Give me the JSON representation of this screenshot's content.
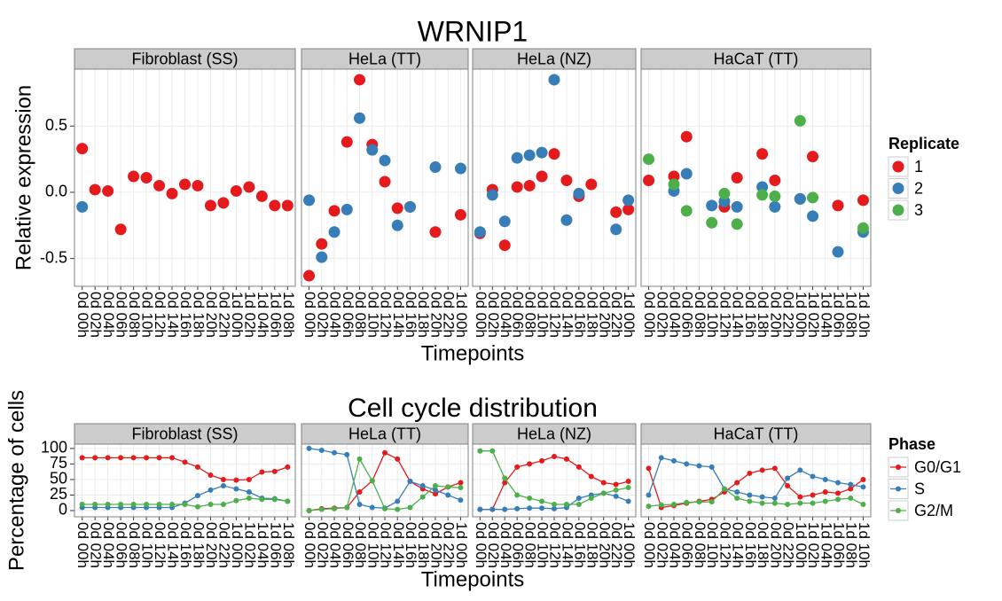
{
  "chart_data": [
    {
      "type": "scatter",
      "title": "WRNIP1",
      "x_label": "Timepoints",
      "y_label": "Relative expression",
      "legend_title": "Replicate",
      "ylim": [
        -0.71,
        0.93
      ],
      "yticks": [
        -0.5,
        {
          "value": 0,
          "label": "0.0"
        },
        0.5
      ],
      "series": [
        {
          "name": "1",
          "color": "#e41a1c"
        },
        {
          "name": "2",
          "color": "#377eb8"
        },
        {
          "name": "3",
          "color": "#4daf4a"
        }
      ],
      "facets": [
        {
          "title": "Fibroblast (SS)",
          "categories": [
            "0d 00h",
            "0d 02h",
            "0d 04h",
            "0d 06h",
            "0d 08h",
            "0d 10h",
            "0d 12h",
            "0d 14h",
            "0d 16h",
            "0d 18h",
            "0d 20h",
            "0d 22h",
            "1d 00h",
            "1d 02h",
            "1d 04h",
            "1d 06h",
            "1d 08h"
          ],
          "values": [
            [
              0.33,
              0.02,
              0.01,
              -0.28,
              0.12,
              0.11,
              0.05,
              -0.01,
              0.06,
              0.05,
              -0.1,
              -0.08,
              0.01,
              0.04,
              -0.03,
              -0.1,
              -0.1
            ],
            [
              -0.11,
              null,
              null,
              null,
              null,
              null,
              null,
              null,
              null,
              null,
              null,
              null,
              null,
              null,
              null,
              null,
              null
            ],
            [
              null,
              null,
              null,
              null,
              null,
              null,
              null,
              null,
              null,
              null,
              null,
              null,
              null,
              null,
              null,
              null,
              null
            ]
          ]
        },
        {
          "title": "HeLa (TT)",
          "categories": [
            "0d 00h",
            "0d 02h",
            "0d 04h",
            "0d 06h",
            "0d 08h",
            "0d 10h",
            "0d 12h",
            "0d 14h",
            "0d 16h",
            "0d 18h",
            "0d 20h",
            "0d 22h",
            "1d 00h"
          ],
          "values": [
            [
              -0.63,
              -0.39,
              -0.14,
              0.38,
              0.85,
              0.36,
              0.08,
              -0.12,
              -0.11,
              null,
              -0.3,
              null,
              -0.17
            ],
            [
              -0.06,
              -0.49,
              -0.3,
              -0.13,
              0.56,
              0.32,
              0.24,
              -0.25,
              -0.11,
              null,
              0.19,
              null,
              0.18
            ],
            [
              null,
              null,
              null,
              null,
              null,
              null,
              null,
              null,
              null,
              null,
              null,
              null,
              null
            ]
          ]
        },
        {
          "title": "HeLa (NZ)",
          "categories": [
            "0d 00h",
            "0d 02h",
            "0d 04h",
            "0d 06h",
            "0d 08h",
            "0d 10h",
            "0d 12h",
            "0d 14h",
            "0d 16h",
            "0d 18h",
            "0d 20h",
            "0d 22h",
            "1d 00h"
          ],
          "values": [
            [
              -0.31,
              0.02,
              -0.4,
              0.04,
              0.05,
              0.12,
              0.29,
              0.09,
              -0.03,
              0.06,
              null,
              -0.15,
              -0.13
            ],
            [
              -0.3,
              -0.02,
              -0.22,
              0.26,
              0.28,
              0.3,
              0.85,
              -0.21,
              -0.01,
              null,
              null,
              -0.28,
              -0.06
            ],
            [
              null,
              null,
              null,
              null,
              null,
              null,
              null,
              null,
              null,
              null,
              null,
              null,
              null
            ]
          ]
        },
        {
          "title": "HaCaT (TT)",
          "categories": [
            "0d 00h",
            "0d 02h",
            "0d 04h",
            "0d 06h",
            "0d 08h",
            "0d 10h",
            "0d 12h",
            "0d 14h",
            "0d 16h",
            "0d 18h",
            "0d 20h",
            "0d 22h",
            "1d 00h",
            "1d 02h",
            "1d 04h",
            "1d 06h",
            "1d 08h",
            "1d 10h"
          ],
          "values": [
            [
              0.09,
              null,
              0.12,
              0.42,
              null,
              null,
              -0.11,
              0.11,
              null,
              0.29,
              0.09,
              null,
              -0.05,
              0.27,
              null,
              -0.1,
              null,
              -0.06
            ],
            [
              null,
              null,
              0.01,
              0.14,
              null,
              -0.1,
              -0.07,
              -0.11,
              null,
              0.04,
              -0.11,
              null,
              -0.05,
              -0.18,
              null,
              -0.45,
              null,
              -0.3
            ],
            [
              0.25,
              null,
              0.06,
              -0.14,
              null,
              -0.23,
              -0.01,
              -0.24,
              null,
              -0.02,
              -0.03,
              null,
              0.54,
              -0.04,
              null,
              null,
              null,
              -0.27
            ]
          ]
        }
      ]
    },
    {
      "type": "line",
      "title": "Cell cycle distribution",
      "x_label": "Timepoints",
      "y_label": "Percentage of cells",
      "legend_title": "Phase",
      "ylim": [
        -10,
        107
      ],
      "yticks": [
        0,
        25,
        50,
        75,
        100
      ],
      "series": [
        {
          "name": "G0/G1",
          "color": "#e41a1c"
        },
        {
          "name": "S",
          "color": "#377eb8"
        },
        {
          "name": "G2/M",
          "color": "#4daf4a"
        }
      ],
      "facets": [
        {
          "title": "Fibroblast (SS)",
          "categories": [
            "0d 00h",
            "0d 02h",
            "0d 04h",
            "0d 06h",
            "0d 08h",
            "0d 10h",
            "0d 12h",
            "0d 14h",
            "0d 16h",
            "0d 18h",
            "0d 20h",
            "0d 22h",
            "1d 00h",
            "1d 02h",
            "1d 04h",
            "1d 06h",
            "1d 08h"
          ],
          "values": [
            [
              85,
              85,
              85,
              85,
              85,
              85,
              85,
              85,
              78,
              70,
              57,
              50,
              49,
              50,
              62,
              63,
              70
            ],
            [
              5,
              5,
              5,
              5,
              5,
              5,
              5,
              5,
              12,
              24,
              33,
              40,
              35,
              30,
              20,
              19,
              15
            ],
            [
              10,
              10,
              10,
              10,
              10,
              10,
              10,
              10,
              10,
              6,
              10,
              10,
              16,
              20,
              18,
              18,
              15
            ]
          ]
        },
        {
          "title": "HeLa (TT)",
          "categories": [
            "0d 00h",
            "0d 02h",
            "0d 04h",
            "0d 06h",
            "0d 08h",
            "0d 10h",
            "0d 12h",
            "0d 14h",
            "0d 16h",
            "0d 18h",
            "0d 20h",
            "0d 22h",
            "1d 00h"
          ],
          "values": [
            [
              0,
              3,
              4,
              5,
              30,
              48,
              93,
              83,
              47,
              35,
              27,
              38,
              45
            ],
            [
              100,
              97,
              93,
              90,
              10,
              5,
              4,
              15,
              47,
              40,
              33,
              25,
              17
            ],
            [
              0,
              2,
              3,
              5,
              83,
              48,
              3,
              2,
              5,
              22,
              40,
              38,
              37
            ]
          ]
        },
        {
          "title": "HeLa (NZ)",
          "categories": [
            "0d 00h",
            "0d 02h",
            "0d 04h",
            "0d 06h",
            "0d 08h",
            "0d 10h",
            "0d 12h",
            "0d 14h",
            "0d 16h",
            "0d 18h",
            "0d 20h",
            "0d 22h",
            "1d 00h"
          ],
          "values": [
            [
              2,
              2,
              45,
              70,
              75,
              80,
              87,
              83,
              70,
              55,
              45,
              42,
              47
            ],
            [
              2,
              2,
              2,
              3,
              4,
              4,
              3,
              5,
              20,
              25,
              28,
              23,
              15
            ],
            [
              96,
              96,
              52,
              25,
              20,
              15,
              10,
              10,
              10,
              20,
              28,
              33,
              37
            ]
          ]
        },
        {
          "title": "HaCaT (TT)",
          "categories": [
            "0d 00h",
            "0d 02h",
            "0d 04h",
            "0d 06h",
            "0d 08h",
            "0d 10h",
            "0d 12h",
            "0d 14h",
            "0d 16h",
            "0d 18h",
            "0d 20h",
            "0d 22h",
            "1d 00h",
            "1d 02h",
            "1d 04h",
            "1d 06h",
            "1d 08h",
            "1d 10h"
          ],
          "values": [
            [
              68,
              5,
              8,
              12,
              15,
              18,
              30,
              45,
              60,
              65,
              68,
              40,
              22,
              25,
              30,
              28,
              35,
              50
            ],
            [
              25,
              85,
              80,
              75,
              72,
              70,
              35,
              30,
              25,
              22,
              20,
              52,
              65,
              55,
              50,
              45,
              42,
              38
            ],
            [
              7,
              9,
              10,
              13,
              14,
              14,
              35,
              20,
              15,
              12,
              12,
              10,
              12,
              12,
              15,
              18,
              20,
              10
            ]
          ]
        }
      ]
    }
  ]
}
